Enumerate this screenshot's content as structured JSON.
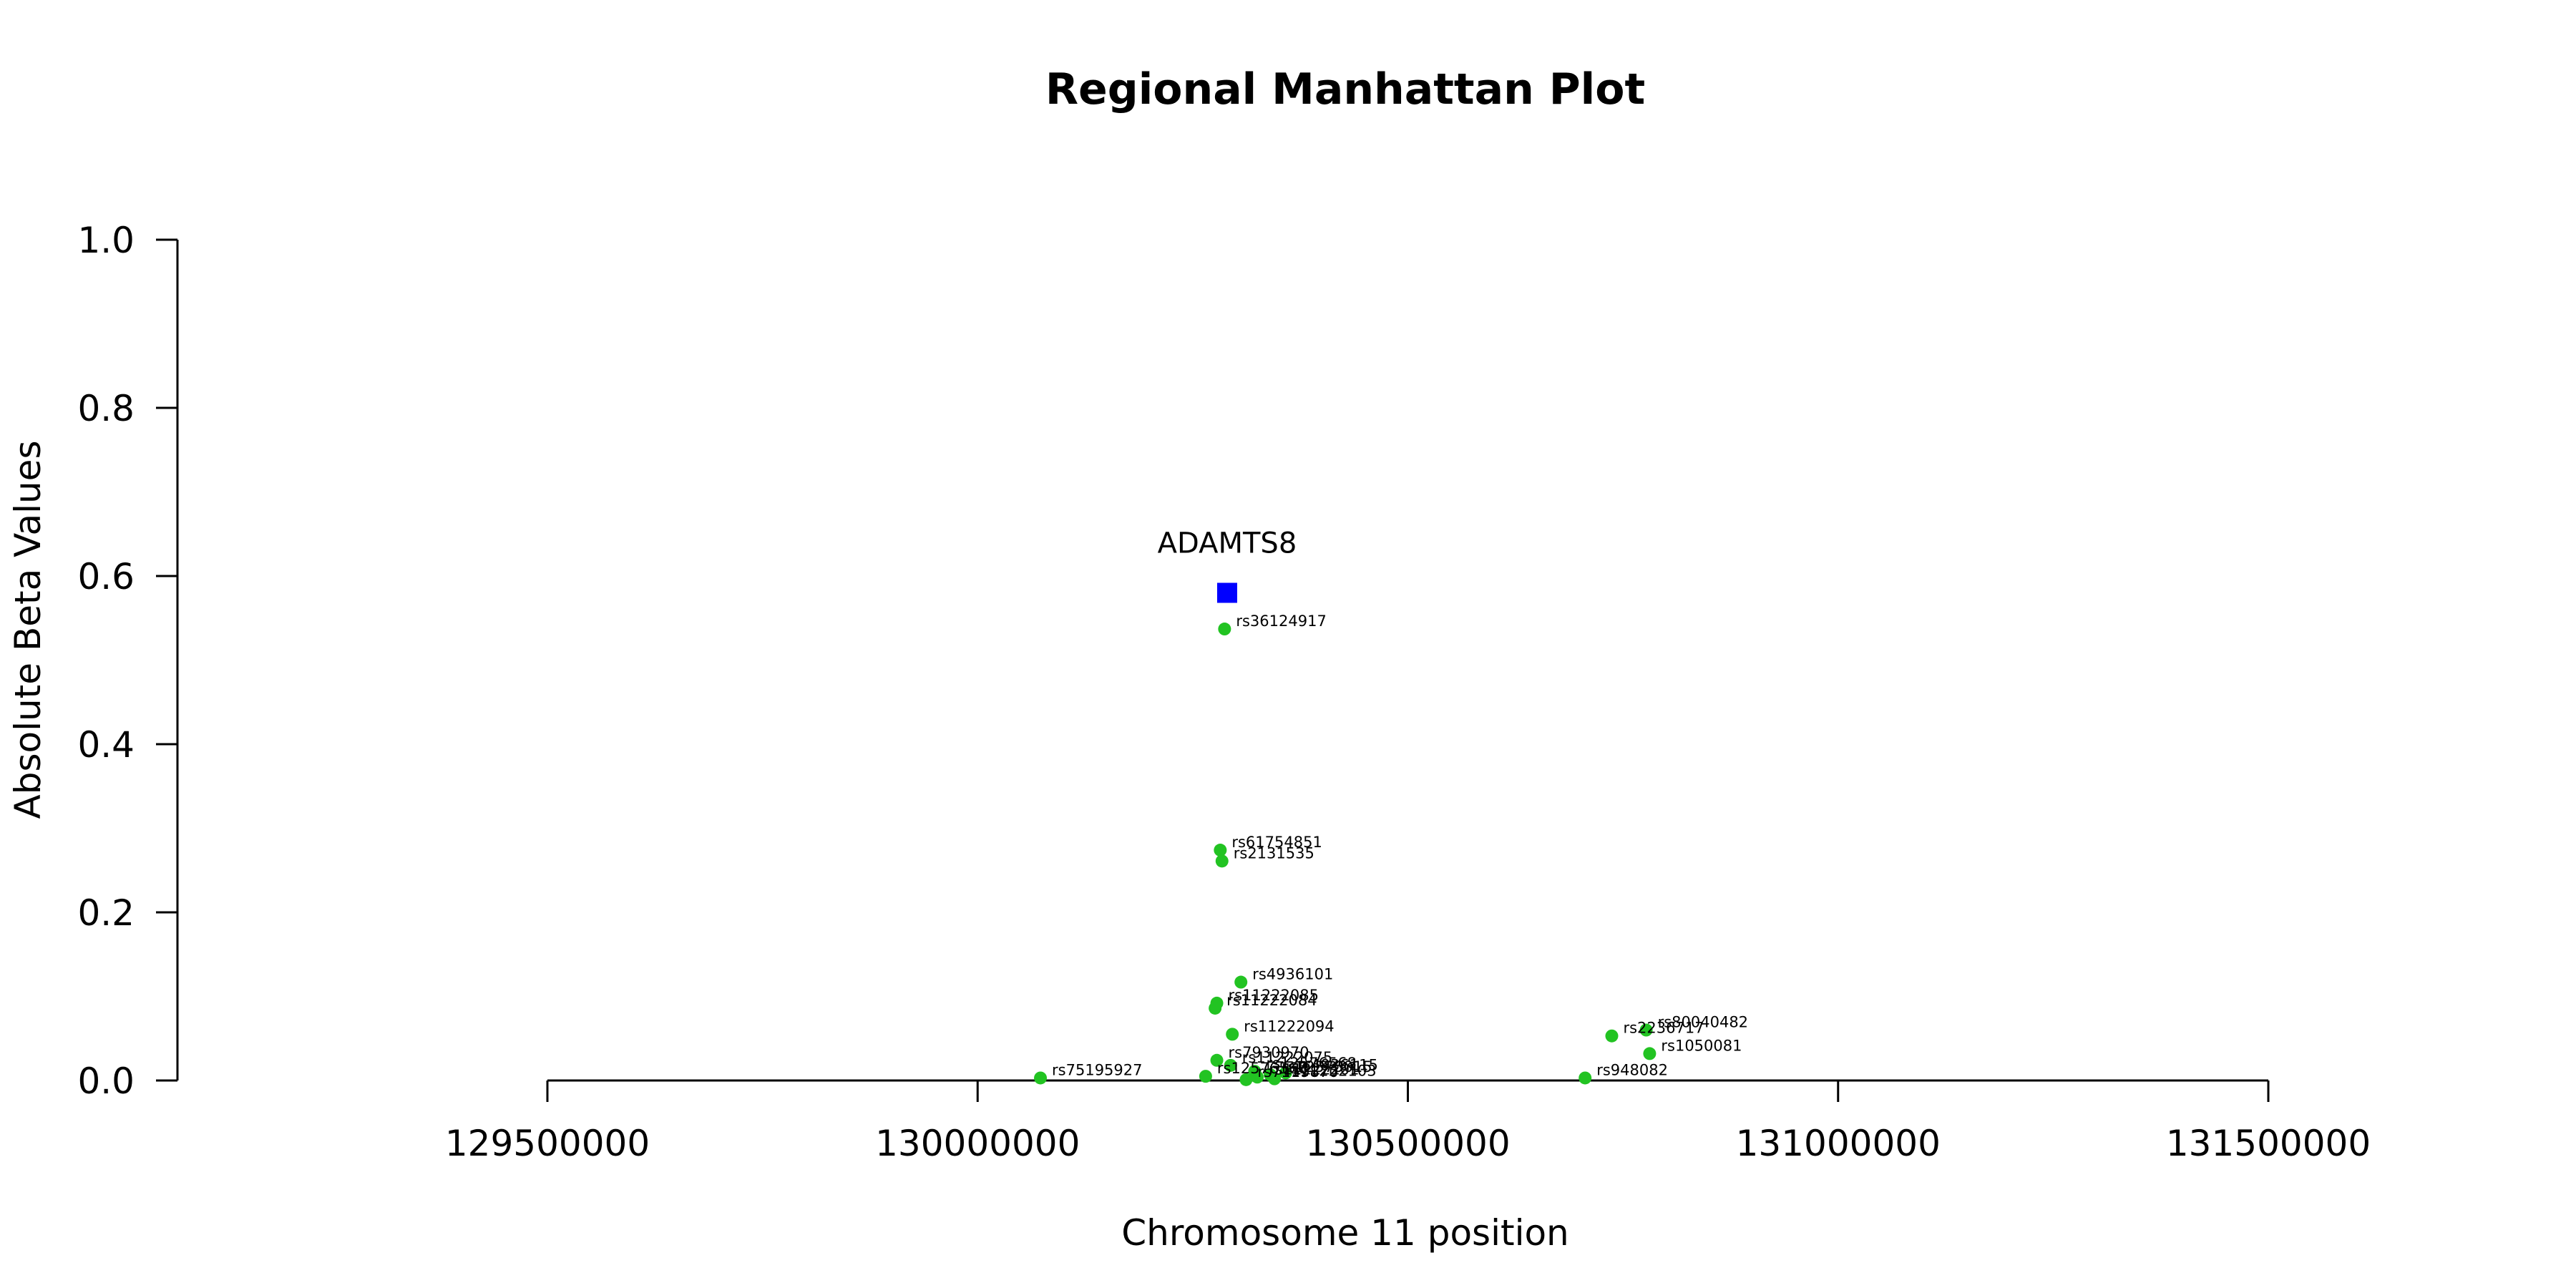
{
  "chart_data": {
    "type": "scatter",
    "title": "Regional Manhattan Plot",
    "xlabel": "Chromosome 11 position",
    "ylabel": "Absolute Beta Values",
    "xlim": [
      129500000,
      131500000
    ],
    "ylim": [
      0,
      1
    ],
    "x_ticks": [
      129500000,
      130000000,
      130500000,
      131000000,
      131500000
    ],
    "x_tick_labels": [
      "129500000",
      "130000000",
      "130500000",
      "131000000",
      "131500000"
    ],
    "y_ticks": [
      0,
      0.2,
      0.4,
      0.6,
      0.8,
      1
    ],
    "y_tick_labels": [
      "0.0",
      "0.2",
      "0.4",
      "0.6",
      "0.8",
      "1.0"
    ],
    "gene": {
      "name": "ADAMTS8",
      "x": 130290000,
      "y": 0.58,
      "color": "#0000ff",
      "marker": "square"
    },
    "snp_color": "#22c322",
    "snps": [
      {
        "id": "rs36124917",
        "x": 130287000,
        "y": 0.537
      },
      {
        "id": "rs61754851",
        "x": 130282000,
        "y": 0.274
      },
      {
        "id": "rs2131535",
        "x": 130284000,
        "y": 0.261
      },
      {
        "id": "rs4936101",
        "x": 130306000,
        "y": 0.117
      },
      {
        "id": "rs11222085",
        "x": 130278000,
        "y": 0.092
      },
      {
        "id": "rs11222084",
        "x": 130276000,
        "y": 0.086
      },
      {
        "id": "rs11222094",
        "x": 130296000,
        "y": 0.055
      },
      {
        "id": "rs7930970",
        "x": 130278000,
        "y": 0.024
      },
      {
        "id": "rs11222075",
        "x": 130294000,
        "y": 0.018
      },
      {
        "id": "rs12576568",
        "x": 130322000,
        "y": 0.011
      },
      {
        "id": "rs4936115",
        "x": 130358000,
        "y": 0.009
      },
      {
        "id": "rs12575015",
        "x": 130340000,
        "y": 0.007
      },
      {
        "id": "rs12576560",
        "x": 130265000,
        "y": 0.005
      },
      {
        "id": "rs11222101",
        "x": 130325000,
        "y": 0.004
      },
      {
        "id": "rs11222103",
        "x": 130345000,
        "y": 0.002
      },
      {
        "id": "rs7119870",
        "x": 130312000,
        "y": 0.001
      },
      {
        "id": "rs75195927",
        "x": 130073000,
        "y": 0.003
      },
      {
        "id": "rs80040482",
        "x": 130777000,
        "y": 0.06
      },
      {
        "id": "rs2236717",
        "x": 130737000,
        "y": 0.053
      },
      {
        "id": "rs1050081",
        "x": 130781000,
        "y": 0.032
      },
      {
        "id": "rs948082",
        "x": 130706000,
        "y": 0.003
      }
    ]
  }
}
